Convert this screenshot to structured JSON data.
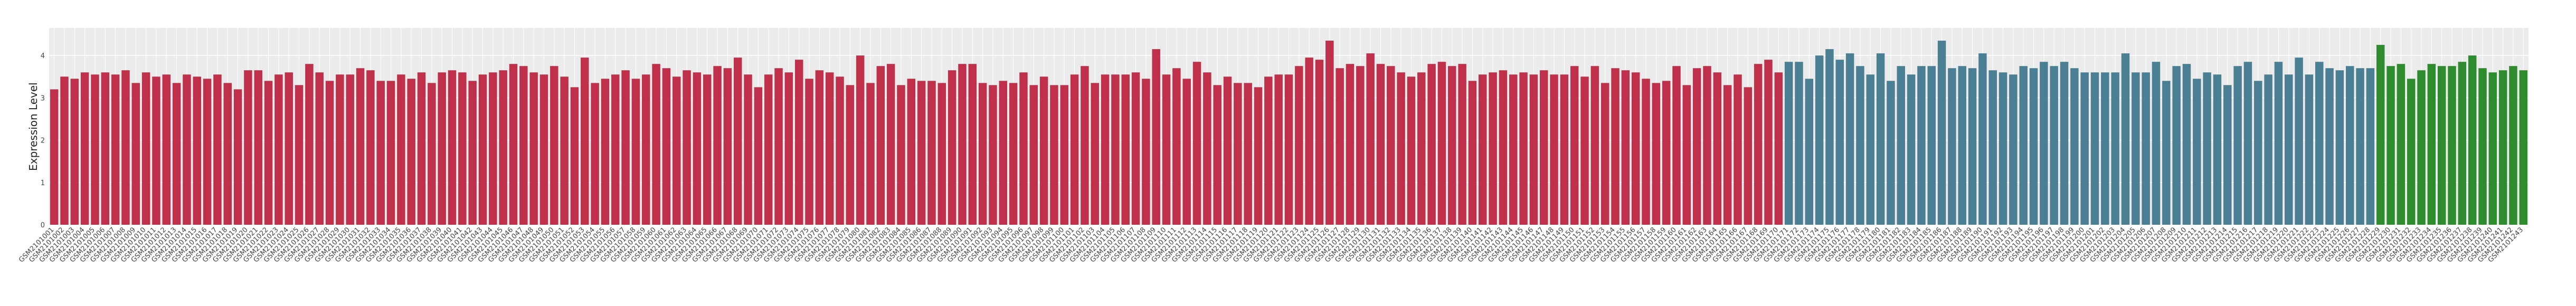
{
  "chart_data": {
    "type": "bar",
    "y_label": "Expression Level",
    "ylim": [
      0,
      4.65
    ],
    "yticks": [
      0,
      1,
      2,
      3,
      4
    ],
    "grid": true,
    "series": [
      {
        "color": "#c0304a",
        "categories": [
          "GSM2101001",
          "GSM2101002",
          "GSM2101003",
          "GSM2101004",
          "GSM2101005",
          "GSM2101006",
          "GSM2101007",
          "GSM2101008",
          "GSM2101009",
          "GSM2101010",
          "GSM2101011",
          "GSM2101012",
          "GSM2101013",
          "GSM2101014",
          "GSM2101015",
          "GSM2101016",
          "GSM2101017",
          "GSM2101018",
          "GSM2101019",
          "GSM2101020",
          "GSM2101021",
          "GSM2101022",
          "GSM2101023",
          "GSM2101024",
          "GSM2101025",
          "GSM2101026",
          "GSM2101027",
          "GSM2101028",
          "GSM2101029",
          "GSM2101030",
          "GSM2101031",
          "GSM2101032",
          "GSM2101033",
          "GSM2101034",
          "GSM2101035",
          "GSM2101036",
          "GSM2101037",
          "GSM2101038",
          "GSM2101039",
          "GSM2101040",
          "GSM2101041",
          "GSM2101042",
          "GSM2101043",
          "GSM2101044",
          "GSM2101045",
          "GSM2101046",
          "GSM2101047",
          "GSM2101048",
          "GSM2101049",
          "GSM2101050",
          "GSM2101051",
          "GSM2101052",
          "GSM2101053",
          "GSM2101054",
          "GSM2101055",
          "GSM2101056",
          "GSM2101057",
          "GSM2101058",
          "GSM2101059",
          "GSM2101060",
          "GSM2101061",
          "GSM2101062",
          "GSM2101063",
          "GSM2101064",
          "GSM2101065",
          "GSM2101066",
          "GSM2101067",
          "GSM2101068",
          "GSM2101069",
          "GSM2101070",
          "GSM2101071",
          "GSM2101072",
          "GSM2101073",
          "GSM2101074",
          "GSM2101075",
          "GSM2101076",
          "GSM2101077",
          "GSM2101078",
          "GSM2101079",
          "GSM2101080",
          "GSM2101081",
          "GSM2101082",
          "GSM2101083",
          "GSM2101084",
          "GSM2101085",
          "GSM2101086",
          "GSM2101087",
          "GSM2101088",
          "GSM2101089",
          "GSM2101090",
          "GSM2101091",
          "GSM2101092",
          "GSM2101093",
          "GSM2101094",
          "GSM2101095",
          "GSM2101096",
          "GSM2101097",
          "GSM2101098",
          "GSM2101099",
          "GSM2101100",
          "GSM2101101",
          "GSM2101102",
          "GSM2101103",
          "GSM2101104",
          "GSM2101105",
          "GSM2101106",
          "GSM2101107",
          "GSM2101108",
          "GSM2101109",
          "GSM2101110",
          "GSM2101111",
          "GSM2101112",
          "GSM2101113",
          "GSM2101114",
          "GSM2101115",
          "GSM2101116",
          "GSM2101117",
          "GSM2101118",
          "GSM2101119",
          "GSM2101120",
          "GSM2101121",
          "GSM2101122",
          "GSM2101123",
          "GSM2101124",
          "GSM2101125",
          "GSM2101126",
          "GSM2101127",
          "GSM2101128",
          "GSM2101129",
          "GSM2101130",
          "GSM2101131",
          "GSM2101132",
          "GSM2101133",
          "GSM2101134",
          "GSM2101135",
          "GSM2101136",
          "GSM2101137",
          "GSM2101138",
          "GSM2101139",
          "GSM2101140",
          "GSM2101141",
          "GSM2101142",
          "GSM2101143",
          "GSM2101144",
          "GSM2101145",
          "GSM2101146",
          "GSM2101147",
          "GSM2101148",
          "GSM2101149",
          "GSM2101150",
          "GSM2101151",
          "GSM2101152",
          "GSM2101153",
          "GSM2101154",
          "GSM2101155",
          "GSM2101156",
          "GSM2101157",
          "GSM2101158",
          "GSM2101159",
          "GSM2101160",
          "GSM2101161",
          "GSM2101162",
          "GSM2101163",
          "GSM2101164",
          "GSM2101165",
          "GSM2101166",
          "GSM2101167",
          "GSM2101168",
          "GSM2101169",
          "GSM2101170"
        ],
        "values": [
          3.2,
          3.5,
          3.45,
          3.6,
          3.55,
          3.6,
          3.55,
          3.65,
          3.35,
          3.6,
          3.5,
          3.55,
          3.35,
          3.55,
          3.5,
          3.45,
          3.55,
          3.35,
          3.2,
          3.65,
          3.65,
          3.4,
          3.55,
          3.6,
          3.3,
          3.8,
          3.6,
          3.4,
          3.55,
          3.55,
          3.7,
          3.65,
          3.4,
          3.4,
          3.55,
          3.45,
          3.6,
          3.35,
          3.6,
          3.65,
          3.6,
          3.4,
          3.55,
          3.6,
          3.65,
          3.8,
          3.75,
          3.6,
          3.55,
          3.75,
          3.5,
          3.25,
          3.95,
          3.35,
          3.45,
          3.55,
          3.65,
          3.45,
          3.55,
          3.8,
          3.7,
          3.5,
          3.65,
          3.6,
          3.55,
          3.75,
          3.7,
          3.95,
          3.55,
          3.25,
          3.55,
          3.7,
          3.6,
          3.9,
          3.45,
          3.65,
          3.6,
          3.5,
          3.3,
          4.0,
          3.35,
          3.75,
          3.8,
          3.3,
          3.45,
          3.4,
          3.4,
          3.35,
          3.65,
          3.8,
          3.8,
          3.35,
          3.3,
          3.4,
          3.35,
          3.6,
          3.3,
          3.5,
          3.3,
          3.3,
          3.55,
          3.75,
          3.35,
          3.55,
          3.55,
          3.55,
          3.6,
          3.45,
          4.15,
          3.55,
          3.7,
          3.45,
          3.85,
          3.6,
          3.3,
          3.5,
          3.35,
          3.35,
          3.25,
          3.5,
          3.55,
          3.55,
          3.75,
          3.95,
          3.9,
          4.35,
          3.7,
          3.8,
          3.75,
          4.05,
          3.8,
          3.75,
          3.6,
          3.5,
          3.6,
          3.8,
          3.85,
          3.75,
          3.8,
          3.4,
          3.55,
          3.6,
          3.65,
          3.55,
          3.6,
          3.55,
          3.65,
          3.55,
          3.55,
          3.75,
          3.5,
          3.75,
          3.35,
          3.7,
          3.65,
          3.6,
          3.45,
          3.35,
          3.4,
          3.75,
          3.3,
          3.7,
          3.75,
          3.6,
          3.3,
          3.55,
          3.25,
          3.8,
          3.9,
          3.6
        ]
      },
      {
        "color": "#4a7f94",
        "categories": [
          "GSM2101171",
          "GSM2101172",
          "GSM2101173",
          "GSM2101174",
          "GSM2101175",
          "GSM2101176",
          "GSM2101177",
          "GSM2101178",
          "GSM2101179",
          "GSM2101180",
          "GSM2101181",
          "GSM2101182",
          "GSM2101183",
          "GSM2101184",
          "GSM2101185",
          "GSM2101186",
          "GSM2101187",
          "GSM2101188",
          "GSM2101189",
          "GSM2101190",
          "GSM2101191",
          "GSM2101192",
          "GSM2101193",
          "GSM2101194",
          "GSM2101195",
          "GSM2101196",
          "GSM2101197",
          "GSM2101198",
          "GSM2101199",
          "GSM2101200",
          "GSM2101201",
          "GSM2101202",
          "GSM2101203",
          "GSM2101204",
          "GSM2101205",
          "GSM2101206",
          "GSM2101207",
          "GSM2101208",
          "GSM2101209",
          "GSM2101210",
          "GSM2101211",
          "GSM2101212",
          "GSM2101213",
          "GSM2101214",
          "GSM2101215",
          "GSM2101216",
          "GSM2101217",
          "GSM2101218",
          "GSM2101219",
          "GSM2101220",
          "GSM2101221",
          "GSM2101222",
          "GSM2101223",
          "GSM2101224",
          "GSM2101225",
          "GSM2101226",
          "GSM2101227",
          "GSM2101228"
        ],
        "values": [
          3.85,
          3.85,
          3.45,
          4.0,
          4.15,
          3.9,
          4.05,
          3.75,
          3.55,
          4.05,
          3.4,
          3.75,
          3.55,
          3.75,
          3.75,
          4.35,
          3.7,
          3.75,
          3.7,
          4.05,
          3.65,
          3.6,
          3.55,
          3.75,
          3.7,
          3.85,
          3.75,
          3.85,
          3.7,
          3.6,
          3.6,
          3.6,
          3.6,
          4.05,
          3.6,
          3.6,
          3.85,
          3.4,
          3.75,
          3.8,
          3.45,
          3.6,
          3.55,
          3.3,
          3.75,
          3.85,
          3.4,
          3.55,
          3.85,
          3.55,
          3.95,
          3.55,
          3.85,
          3.7,
          3.65,
          3.75,
          3.7,
          3.7
        ]
      },
      {
        "color": "#2e8b2e",
        "categories": [
          "GSM2101229",
          "GSM2101230",
          "GSM2101231",
          "GSM2101232",
          "GSM2101233",
          "GSM2101234",
          "GSM2101235",
          "GSM2101236",
          "GSM2101237",
          "GSM2101238",
          "GSM2101239",
          "GSM2101240",
          "GSM2101241",
          "GSM2101242",
          "GSM2101243"
        ],
        "values": [
          4.25,
          3.75,
          3.8,
          3.45,
          3.65,
          3.8,
          3.75,
          3.75,
          3.85,
          4.0,
          3.7,
          3.6,
          3.65,
          3.75,
          3.65
        ]
      }
    ]
  }
}
